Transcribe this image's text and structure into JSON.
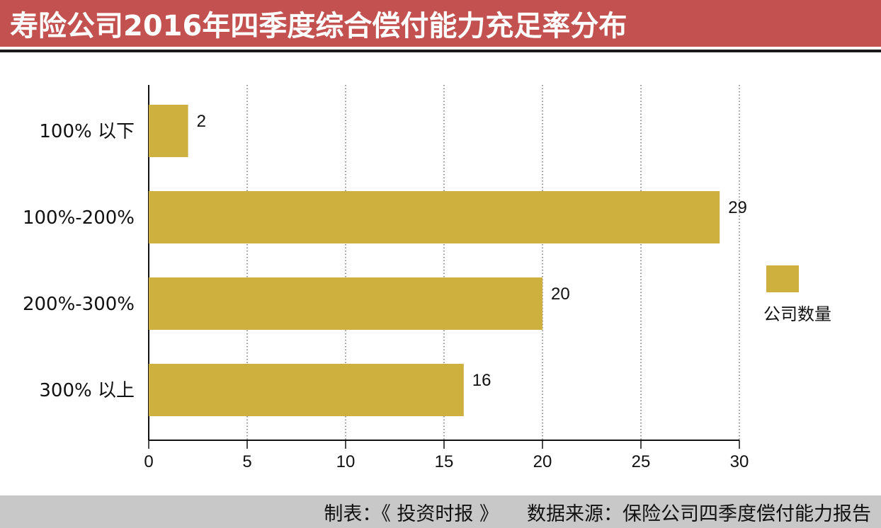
{
  "header": {
    "title": "寿险公司2016年四季度综合偿付能力充足率分布"
  },
  "chart_data": {
    "type": "bar",
    "orientation": "horizontal",
    "categories": [
      "100% 以下",
      "100%-200%",
      "200%-300%",
      "300% 以上"
    ],
    "series": [
      {
        "name": "公司数量",
        "values": [
          2,
          29,
          20,
          16
        ]
      }
    ],
    "data_labels": [
      "2",
      "29",
      "20",
      "16"
    ],
    "x_ticks": [
      "0",
      "5",
      "10",
      "15",
      "20",
      "25",
      "30"
    ],
    "xlim": [
      0,
      30
    ],
    "grid": "vertical dotted",
    "legend_position": "right",
    "bar_color": "#cdb03e"
  },
  "footer": {
    "maker": "制表：《 投资时报 》",
    "source": "数据来源：保险公司四季度偿付能力报告"
  },
  "colors": {
    "header_bg": "#c2514f",
    "footer_bg": "#c8c8c8",
    "bar": "#cdb03e"
  }
}
